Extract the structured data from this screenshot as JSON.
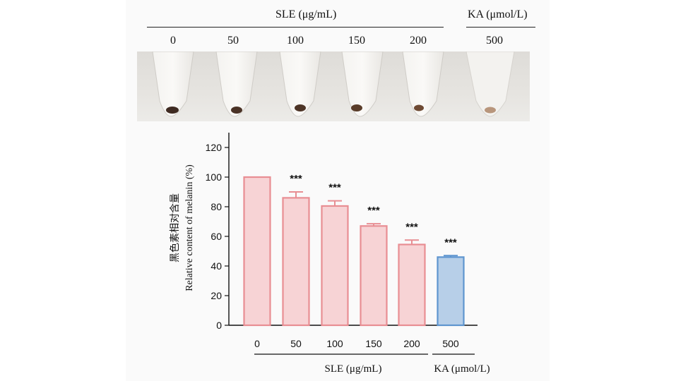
{
  "figure": {
    "top_group_sle": "SLE (μg/mL)",
    "top_group_ka": "KA (μmol/L)",
    "tube_labels": [
      "0",
      "50",
      "100",
      "150",
      "200",
      "500"
    ]
  },
  "colors": {
    "sle_fill": "#f7d3d5",
    "sle_stroke": "#e88e93",
    "ka_fill": "#b7cfe8",
    "ka_stroke": "#5e95cf"
  },
  "chart_data": {
    "type": "bar",
    "categories": [
      "0",
      "50",
      "100",
      "150",
      "200",
      "500"
    ],
    "values": [
      100,
      86,
      80.5,
      67,
      54.5,
      46
    ],
    "errors": [
      0,
      4,
      3.5,
      1.5,
      3,
      1
    ],
    "significance": [
      "",
      "***",
      "***",
      "***",
      "***",
      "***"
    ],
    "groups": [
      {
        "label": "SLE (μg/mL)",
        "members": [
          1,
          2,
          3,
          4
        ]
      },
      {
        "label": "KA (μmol/L)",
        "members": [
          5
        ]
      }
    ],
    "ylabel_cn": "黑色素相对含量",
    "ylabel_en": "Relative content of  melanin (%)",
    "ylim": [
      0,
      130
    ],
    "yticks": [
      0,
      20,
      40,
      60,
      80,
      100,
      120
    ]
  }
}
